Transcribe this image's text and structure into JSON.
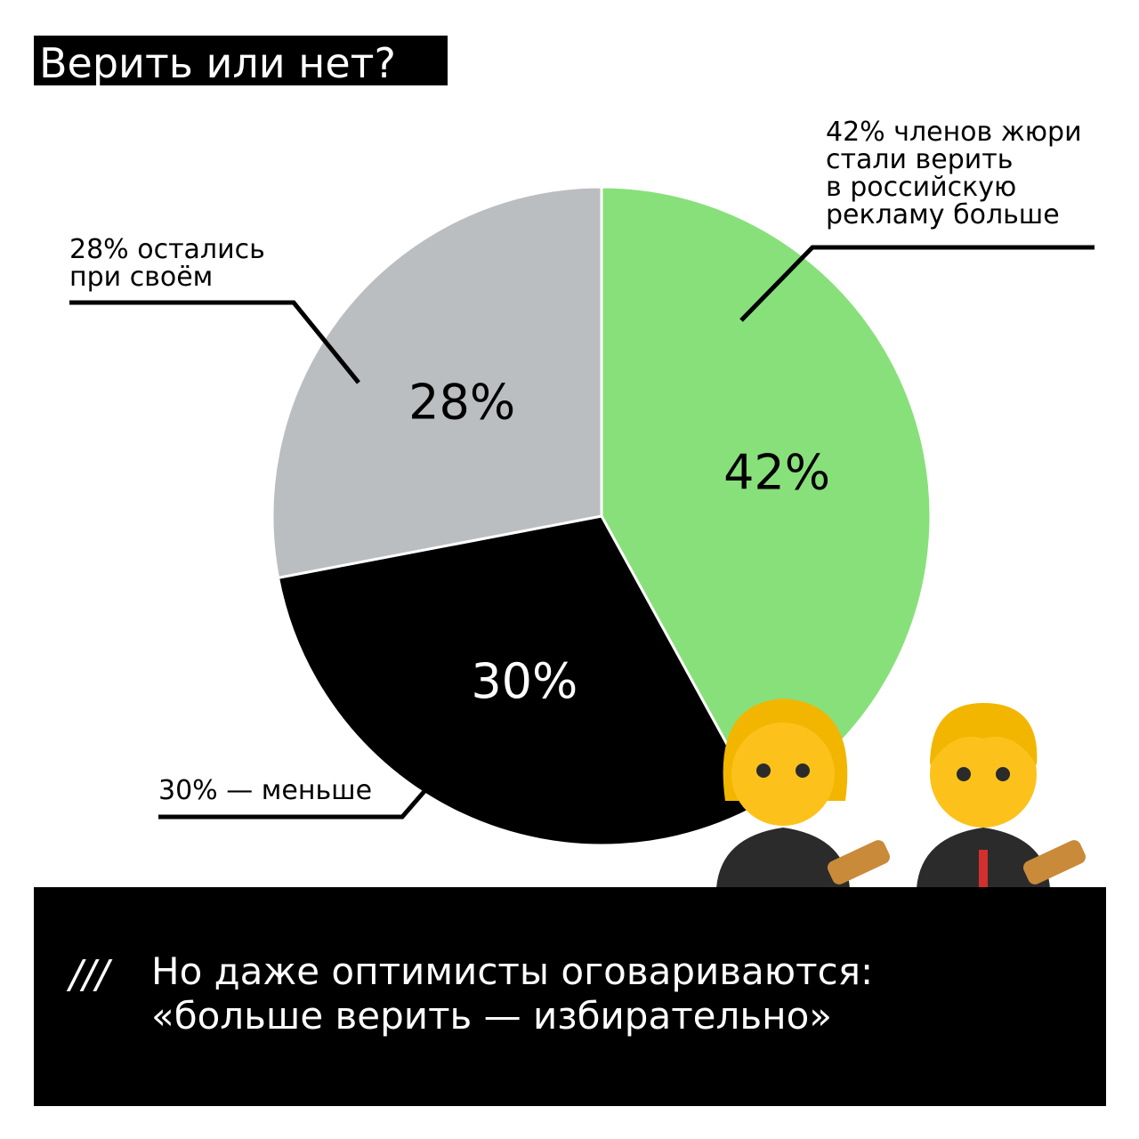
{
  "chart_data": {
    "type": "pie",
    "title": "Верить или нет?",
    "values": [
      42,
      30,
      28
    ],
    "value_labels": [
      "42%",
      "30%",
      "28%"
    ],
    "colors": [
      "#88e07a",
      "#000000",
      "#bbbec1"
    ],
    "annotations": [
      {
        "lines": [
          "42% членов жюри",
          "стали верить",
          "в российскую",
          "рекламу больше"
        ]
      },
      {
        "lines": [
          "30% — меньше"
        ]
      },
      {
        "lines": [
          "28% остались",
          "при своём"
        ]
      }
    ]
  },
  "footer": {
    "marker": "///",
    "lines": [
      "Но даже оптимисты оговариваются:",
      "«больше верить — избирательно»"
    ]
  }
}
